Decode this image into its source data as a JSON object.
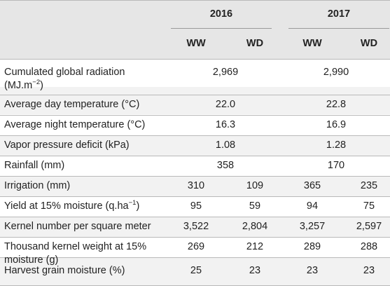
{
  "header": {
    "years": [
      "2016",
      "2017"
    ],
    "treatments": [
      "WW",
      "WD",
      "WW",
      "WD"
    ]
  },
  "rows": [
    {
      "label_main": "Cumulated global radiation",
      "label_line2": "(MJ.m",
      "label_sup": "−2",
      "label_tail": ")",
      "y2016": "2,969",
      "y2017": "2,990"
    },
    {
      "label": "Average day temperature (°C)",
      "y2016": "22.0",
      "y2017": "22.8"
    },
    {
      "label": "Average night temperature (°C)",
      "y2016": "16.3",
      "y2017": "16.9"
    },
    {
      "label": "Vapor pressure deficit (kPa)",
      "y2016": "1.08",
      "y2017": "1.28"
    },
    {
      "label": "Rainfall (mm)",
      "y2016": "358",
      "y2017": "170"
    },
    {
      "label": "Irrigation (mm)",
      "values": [
        "310",
        "109",
        "365",
        "235"
      ]
    },
    {
      "label_main": "Yield at 15% moisture (q.ha",
      "label_sup": "−1",
      "label_tail": ")",
      "values": [
        "95",
        "59",
        "94",
        "75"
      ]
    },
    {
      "label": "Kernel number per square meter",
      "values": [
        "3,522",
        "2,804",
        "3,257",
        "2,597"
      ]
    },
    {
      "label_line1": "Thousand kernel weight at 15%",
      "label_line2": "moisture (g)",
      "values": [
        "269",
        "212",
        "289",
        "288"
      ]
    },
    {
      "label": "Harvest grain moisture (%)",
      "values": [
        "25",
        "23",
        "23",
        "23"
      ]
    }
  ]
}
